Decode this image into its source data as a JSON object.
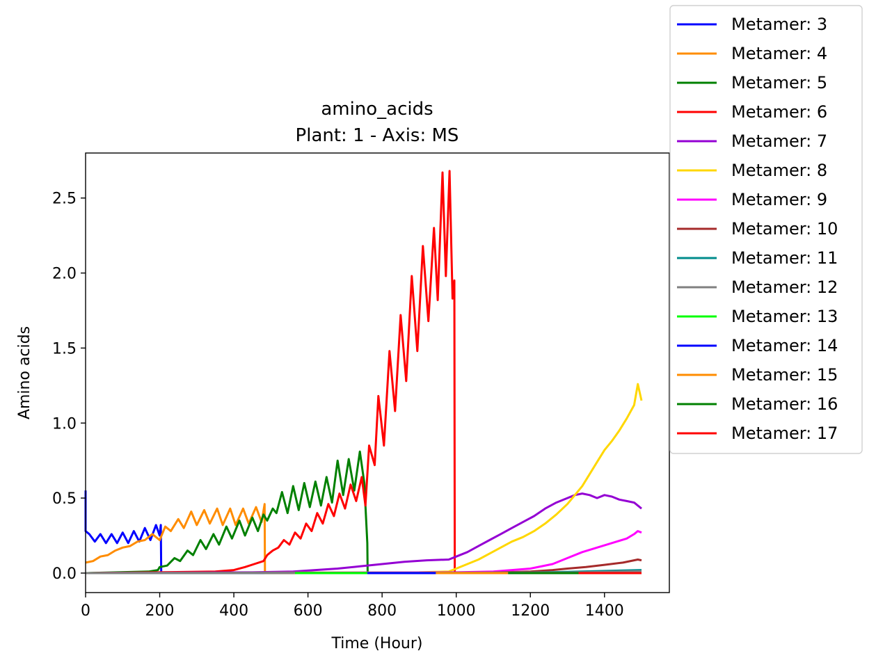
{
  "chart_data": {
    "type": "line",
    "title": "amino_acids",
    "subtitle": "Plant: 1 - Axis: MS",
    "xlabel": "Time (Hour)",
    "ylabel": "Amino acids",
    "xlim": [
      0,
      1575
    ],
    "ylim": [
      -0.13,
      2.8
    ],
    "x_ticks": [
      0,
      200,
      400,
      600,
      800,
      1000,
      1200,
      1400
    ],
    "y_ticks": [
      0.0,
      0.5,
      1.0,
      1.5,
      2.0,
      2.5
    ],
    "x_tick_labels": [
      "0",
      "200",
      "400",
      "600",
      "800",
      "1000",
      "1200",
      "1400"
    ],
    "y_tick_labels": [
      "0.0",
      "0.5",
      "1.0",
      "1.5",
      "2.0",
      "2.5"
    ],
    "grid": false,
    "legend_position": "outside-right-top",
    "series": [
      {
        "name": "Metamer: 3",
        "color": "#0000ff",
        "points": [
          [
            0,
            0.55
          ],
          [
            0,
            0.28
          ],
          [
            10,
            0.26
          ],
          [
            25,
            0.21
          ],
          [
            40,
            0.26
          ],
          [
            55,
            0.2
          ],
          [
            70,
            0.26
          ],
          [
            85,
            0.2
          ],
          [
            100,
            0.27
          ],
          [
            115,
            0.2
          ],
          [
            130,
            0.28
          ],
          [
            145,
            0.21
          ],
          [
            160,
            0.3
          ],
          [
            175,
            0.22
          ],
          [
            190,
            0.32
          ],
          [
            200,
            0.25
          ],
          [
            203,
            0.32
          ],
          [
            204,
            0.0
          ],
          [
            1500,
            0.0
          ]
        ]
      },
      {
        "name": "Metamer: 4",
        "color": "#ff8c00",
        "points": [
          [
            0,
            0.07
          ],
          [
            20,
            0.08
          ],
          [
            40,
            0.11
          ],
          [
            60,
            0.12
          ],
          [
            80,
            0.15
          ],
          [
            100,
            0.17
          ],
          [
            120,
            0.18
          ],
          [
            140,
            0.21
          ],
          [
            160,
            0.22
          ],
          [
            180,
            0.26
          ],
          [
            200,
            0.22
          ],
          [
            215,
            0.31
          ],
          [
            230,
            0.28
          ],
          [
            250,
            0.36
          ],
          [
            265,
            0.3
          ],
          [
            285,
            0.41
          ],
          [
            300,
            0.32
          ],
          [
            320,
            0.42
          ],
          [
            335,
            0.33
          ],
          [
            355,
            0.43
          ],
          [
            370,
            0.32
          ],
          [
            390,
            0.43
          ],
          [
            405,
            0.32
          ],
          [
            425,
            0.43
          ],
          [
            440,
            0.33
          ],
          [
            460,
            0.44
          ],
          [
            475,
            0.34
          ],
          [
            483,
            0.46
          ],
          [
            484,
            0.0
          ],
          [
            1500,
            0.0
          ]
        ]
      },
      {
        "name": "Metamer: 5",
        "color": "#008000",
        "points": [
          [
            0,
            0.0
          ],
          [
            170,
            0.01
          ],
          [
            195,
            0.02
          ],
          [
            200,
            0.04
          ],
          [
            220,
            0.05
          ],
          [
            240,
            0.1
          ],
          [
            255,
            0.08
          ],
          [
            275,
            0.15
          ],
          [
            290,
            0.12
          ],
          [
            310,
            0.22
          ],
          [
            325,
            0.16
          ],
          [
            345,
            0.26
          ],
          [
            360,
            0.19
          ],
          [
            380,
            0.31
          ],
          [
            395,
            0.23
          ],
          [
            415,
            0.35
          ],
          [
            430,
            0.25
          ],
          [
            450,
            0.37
          ],
          [
            465,
            0.28
          ],
          [
            480,
            0.39
          ],
          [
            490,
            0.35
          ],
          [
            505,
            0.43
          ],
          [
            515,
            0.4
          ],
          [
            530,
            0.54
          ],
          [
            545,
            0.4
          ],
          [
            560,
            0.58
          ],
          [
            575,
            0.42
          ],
          [
            590,
            0.6
          ],
          [
            605,
            0.44
          ],
          [
            620,
            0.61
          ],
          [
            635,
            0.45
          ],
          [
            650,
            0.64
          ],
          [
            665,
            0.47
          ],
          [
            680,
            0.75
          ],
          [
            695,
            0.52
          ],
          [
            710,
            0.76
          ],
          [
            725,
            0.55
          ],
          [
            740,
            0.81
          ],
          [
            752,
            0.6
          ],
          [
            760,
            0.2
          ],
          [
            761,
            0.0
          ],
          [
            1500,
            0.0
          ]
        ]
      },
      {
        "name": "Metamer: 6",
        "color": "#ff0000",
        "points": [
          [
            0,
            0.0
          ],
          [
            350,
            0.01
          ],
          [
            400,
            0.02
          ],
          [
            430,
            0.04
          ],
          [
            455,
            0.06
          ],
          [
            480,
            0.08
          ],
          [
            490,
            0.12
          ],
          [
            505,
            0.15
          ],
          [
            520,
            0.17
          ],
          [
            535,
            0.22
          ],
          [
            550,
            0.19
          ],
          [
            565,
            0.27
          ],
          [
            580,
            0.23
          ],
          [
            595,
            0.33
          ],
          [
            610,
            0.28
          ],
          [
            625,
            0.4
          ],
          [
            640,
            0.33
          ],
          [
            655,
            0.46
          ],
          [
            670,
            0.38
          ],
          [
            685,
            0.53
          ],
          [
            700,
            0.43
          ],
          [
            715,
            0.59
          ],
          [
            730,
            0.48
          ],
          [
            745,
            0.64
          ],
          [
            755,
            0.45
          ],
          [
            765,
            0.85
          ],
          [
            780,
            0.72
          ],
          [
            790,
            1.18
          ],
          [
            805,
            0.85
          ],
          [
            820,
            1.48
          ],
          [
            835,
            1.08
          ],
          [
            850,
            1.72
          ],
          [
            865,
            1.28
          ],
          [
            880,
            1.98
          ],
          [
            895,
            1.48
          ],
          [
            910,
            2.18
          ],
          [
            925,
            1.68
          ],
          [
            940,
            2.3
          ],
          [
            950,
            1.82
          ],
          [
            963,
            2.67
          ],
          [
            972,
            1.98
          ],
          [
            982,
            2.68
          ],
          [
            990,
            1.83
          ],
          [
            995,
            1.95
          ],
          [
            996,
            0.0
          ],
          [
            1500,
            0.0
          ]
        ]
      },
      {
        "name": "Metamer: 7",
        "color": "#9400d3",
        "points": [
          [
            0,
            0.0
          ],
          [
            450,
            0.005
          ],
          [
            560,
            0.01
          ],
          [
            620,
            0.02
          ],
          [
            680,
            0.03
          ],
          [
            740,
            0.045
          ],
          [
            800,
            0.06
          ],
          [
            860,
            0.075
          ],
          [
            920,
            0.085
          ],
          [
            980,
            0.09
          ],
          [
            1000,
            0.11
          ],
          [
            1030,
            0.14
          ],
          [
            1060,
            0.18
          ],
          [
            1090,
            0.22
          ],
          [
            1120,
            0.26
          ],
          [
            1150,
            0.3
          ],
          [
            1180,
            0.34
          ],
          [
            1210,
            0.38
          ],
          [
            1240,
            0.43
          ],
          [
            1270,
            0.47
          ],
          [
            1300,
            0.5
          ],
          [
            1320,
            0.52
          ],
          [
            1340,
            0.53
          ],
          [
            1360,
            0.52
          ],
          [
            1380,
            0.5
          ],
          [
            1400,
            0.52
          ],
          [
            1420,
            0.51
          ],
          [
            1440,
            0.49
          ],
          [
            1460,
            0.48
          ],
          [
            1480,
            0.47
          ],
          [
            1500,
            0.43
          ]
        ]
      },
      {
        "name": "Metamer: 8",
        "color": "#ffd700",
        "points": [
          [
            0,
            0.0
          ],
          [
            900,
            0.005
          ],
          [
            980,
            0.01
          ],
          [
            1000,
            0.03
          ],
          [
            1030,
            0.06
          ],
          [
            1060,
            0.09
          ],
          [
            1090,
            0.13
          ],
          [
            1120,
            0.17
          ],
          [
            1150,
            0.21
          ],
          [
            1180,
            0.24
          ],
          [
            1210,
            0.28
          ],
          [
            1240,
            0.33
          ],
          [
            1270,
            0.39
          ],
          [
            1300,
            0.46
          ],
          [
            1320,
            0.52
          ],
          [
            1340,
            0.58
          ],
          [
            1360,
            0.66
          ],
          [
            1380,
            0.74
          ],
          [
            1400,
            0.82
          ],
          [
            1420,
            0.88
          ],
          [
            1440,
            0.95
          ],
          [
            1460,
            1.03
          ],
          [
            1480,
            1.12
          ],
          [
            1490,
            1.26
          ],
          [
            1500,
            1.15
          ]
        ]
      },
      {
        "name": "Metamer: 9",
        "color": "#ff00ff",
        "points": [
          [
            0,
            0.0
          ],
          [
            1000,
            0.005
          ],
          [
            1100,
            0.01
          ],
          [
            1200,
            0.03
          ],
          [
            1260,
            0.06
          ],
          [
            1300,
            0.1
          ],
          [
            1340,
            0.14
          ],
          [
            1380,
            0.17
          ],
          [
            1420,
            0.2
          ],
          [
            1460,
            0.23
          ],
          [
            1480,
            0.26
          ],
          [
            1490,
            0.28
          ],
          [
            1500,
            0.27
          ]
        ]
      },
      {
        "name": "Metamer: 10",
        "color": "#a52a2a",
        "points": [
          [
            0,
            0.0
          ],
          [
            1100,
            0.003
          ],
          [
            1200,
            0.01
          ],
          [
            1260,
            0.02
          ],
          [
            1300,
            0.03
          ],
          [
            1350,
            0.04
          ],
          [
            1400,
            0.055
          ],
          [
            1450,
            0.07
          ],
          [
            1490,
            0.09
          ],
          [
            1500,
            0.085
          ]
        ]
      },
      {
        "name": "Metamer: 11",
        "color": "#008b8b",
        "points": [
          [
            0,
            0.0
          ],
          [
            1200,
            0.003
          ],
          [
            1300,
            0.008
          ],
          [
            1400,
            0.014
          ],
          [
            1500,
            0.02
          ]
        ]
      },
      {
        "name": "Metamer: 12",
        "color": "#808080",
        "points": [
          [
            0,
            0.0
          ],
          [
            1300,
            0.003
          ],
          [
            1400,
            0.008
          ],
          [
            1500,
            0.012
          ]
        ]
      },
      {
        "name": "Metamer: 13",
        "color": "#00ff00",
        "points": [
          [
            565,
            0.0
          ],
          [
            760,
            0.0
          ]
        ]
      },
      {
        "name": "Metamer: 14",
        "color": "#0000ff",
        "points": [
          [
            760,
            0.0
          ],
          [
            945,
            0.0
          ]
        ]
      },
      {
        "name": "Metamer: 15",
        "color": "#ff8c00",
        "points": [
          [
            945,
            0.0
          ],
          [
            1140,
            0.0
          ]
        ]
      },
      {
        "name": "Metamer: 16",
        "color": "#008000",
        "points": [
          [
            1140,
            0.0
          ],
          [
            1330,
            0.0
          ]
        ]
      },
      {
        "name": "Metamer: 17",
        "color": "#ff0000",
        "points": [
          [
            1330,
            0.0
          ],
          [
            1500,
            0.0
          ]
        ]
      }
    ]
  }
}
